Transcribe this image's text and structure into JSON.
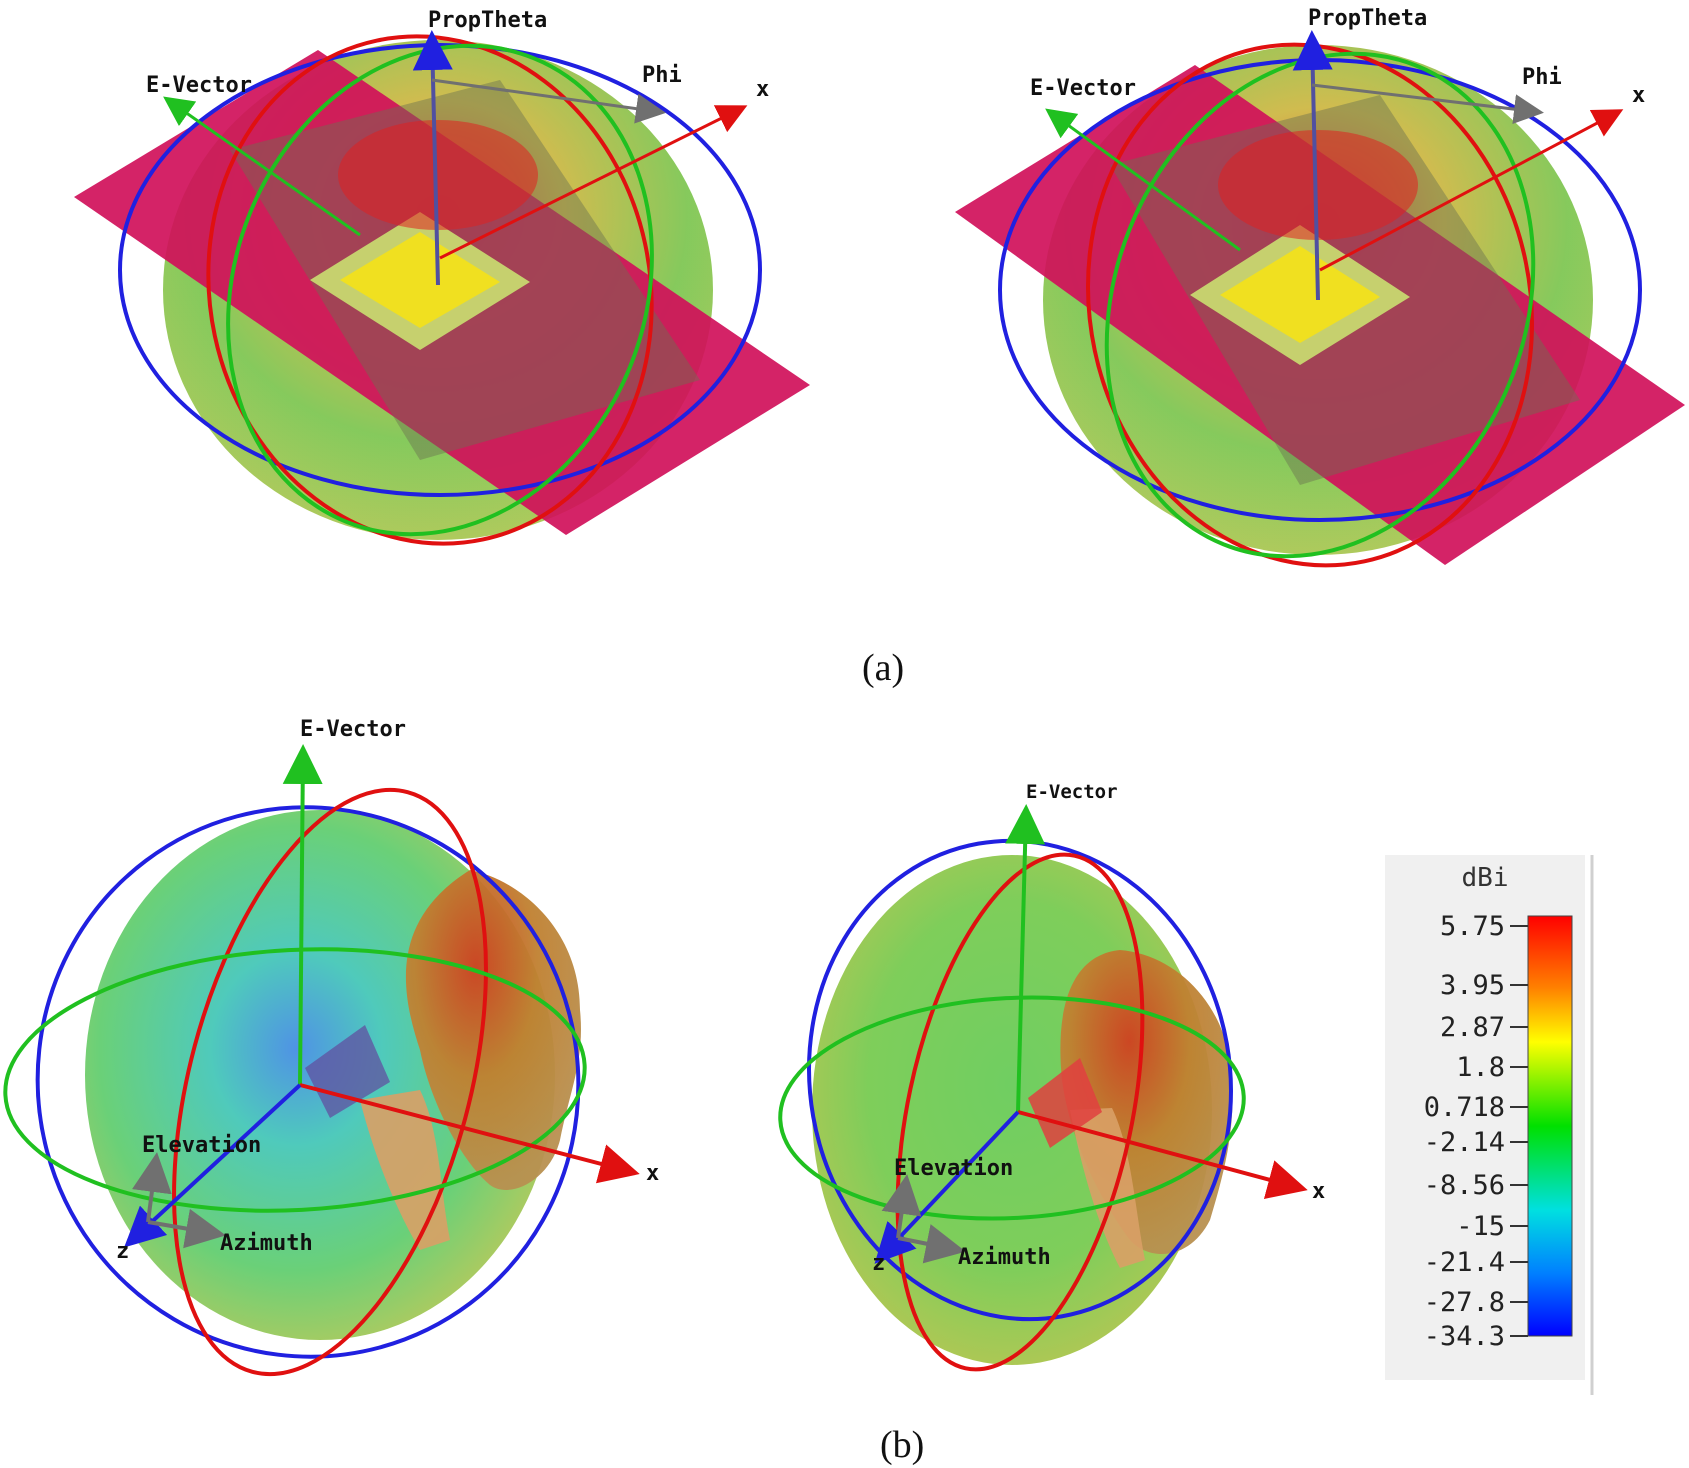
{
  "captions": {
    "a": "(a)",
    "b": "(b)"
  },
  "panel_a": {
    "labels": {
      "prop_theta": "PropTheta",
      "phi": "Phi",
      "e_vector": "E-Vector",
      "x": "x"
    }
  },
  "panel_b": {
    "labels": {
      "e_vector": "E-Vector",
      "elevation": "Elevation",
      "azimuth": "Azimuth",
      "x": "x",
      "z": "z"
    }
  },
  "colorbar": {
    "title": "dBi",
    "ticks": [
      "5.75",
      "3.95",
      "2.87",
      "1.8",
      "0.718",
      "-2.14",
      "-8.56",
      "-15",
      "-21.4",
      "-27.8",
      "-34.3"
    ],
    "colors": [
      "#ff0000",
      "#ff8000",
      "#ffff00",
      "#00e000",
      "#00e0e0",
      "#0080ff",
      "#0000ff"
    ]
  },
  "colors": {
    "ring_red": "#e01010",
    "ring_green": "#20c020",
    "ring_blue": "#2020e0",
    "ground_plane": "#d0105a",
    "patch": "#f0e020",
    "skin": "#d9a066"
  }
}
